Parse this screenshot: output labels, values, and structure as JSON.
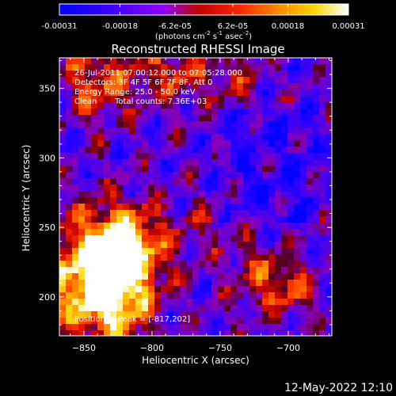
{
  "chart_data": {
    "type": "heatmap",
    "title": "Reconstructed RHESSI Image",
    "xlabel": "Heliocentric X (arcsec)",
    "ylabel": "Heliocentric Y (arcsec)",
    "xlim": [
      -868,
      -668
    ],
    "ylim": [
      172,
      372
    ],
    "xticks": [
      -850,
      -800,
      -750,
      -700
    ],
    "yticks": [
      200,
      250,
      300,
      350
    ],
    "colorbar": {
      "range": [
        -0.00031,
        0.00031
      ],
      "tick_values": [
        -0.00031,
        -0.00018,
        -6.2e-05,
        6.2e-05,
        0.00018,
        0.00031
      ],
      "tick_labels": [
        "-0.00031",
        "-0.00018",
        "-6.2e-05",
        "6.2e-05",
        "0.00018",
        "0.00031"
      ],
      "unit_label_main": "(photons cm",
      "unit_label_exp1": "-2",
      "unit_label_mid1": " s",
      "unit_label_exp2": "-1",
      "unit_label_mid2": " asec",
      "unit_label_exp3": "-2",
      "unit_label_end": ")"
    },
    "annotations": {
      "time": "26-Jul-2011 07:00:12.000 to 07:05:28.000",
      "detectors": "Detectors: 3F 4F 5F 6F 7F 8F, Att 0",
      "energy": "Energy Range: 25.0 - 50.0 keV",
      "clean": "Clean",
      "counts": "Total counts: 7.36E+03",
      "peak": "Position of Peak = [-817,202]"
    },
    "grid": false,
    "legend": "none"
  },
  "footer": {
    "date": "12-May-2022 12:10"
  }
}
